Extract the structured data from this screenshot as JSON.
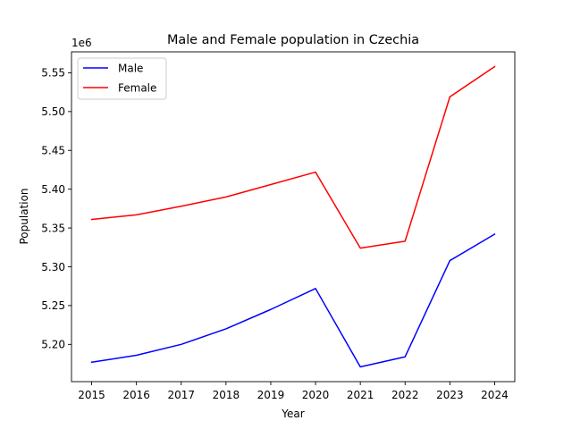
{
  "chart_data": {
    "type": "line",
    "title": "Male and Female population in Czechia",
    "xlabel": "Year",
    "ylabel": "Population",
    "y_offset_label": "1e6",
    "x": [
      2015,
      2016,
      2017,
      2018,
      2019,
      2020,
      2021,
      2022,
      2023,
      2024
    ],
    "x_tick_labels": [
      "2015",
      "2016",
      "2017",
      "2018",
      "2019",
      "2020",
      "2021",
      "2022",
      "2023",
      "2024"
    ],
    "y_ticks": [
      5.2,
      5.25,
      5.3,
      5.35,
      5.4,
      5.45,
      5.5,
      5.55
    ],
    "y_tick_labels": [
      "5.20",
      "5.25",
      "5.30",
      "5.35",
      "5.40",
      "5.45",
      "5.50",
      "5.55"
    ],
    "ylim": [
      5.152,
      5.577
    ],
    "xlim": [
      2014.55,
      2024.45
    ],
    "y_scale_note": "values in millions",
    "grid": false,
    "legend_position": "upper left",
    "series": [
      {
        "name": "Male",
        "color": "#0000ff",
        "values": [
          5.177,
          5.186,
          5.2,
          5.22,
          5.245,
          5.272,
          5.171,
          5.184,
          5.308,
          5.342
        ]
      },
      {
        "name": "Female",
        "color": "#ff0000",
        "values": [
          5.361,
          5.367,
          5.378,
          5.39,
          5.406,
          5.422,
          5.324,
          5.333,
          5.519,
          5.558
        ]
      }
    ]
  }
}
